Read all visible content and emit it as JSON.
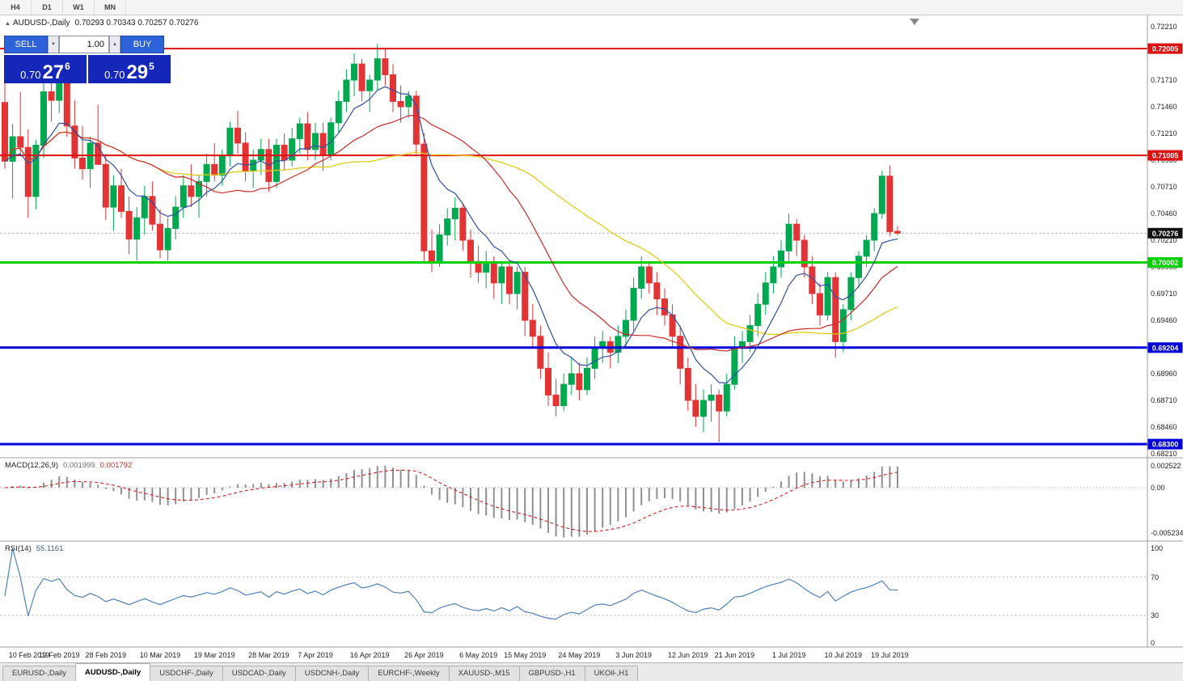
{
  "toolbar": {
    "timeframes": [
      "H4",
      "D1",
      "W1",
      "MN"
    ]
  },
  "chart_header": {
    "symbol_marker": "▲",
    "title": "AUDUSD-,Daily",
    "ohlc": "0.70293 0.70343 0.70257 0.70276"
  },
  "trade_panel": {
    "sell_label": "SELL",
    "buy_label": "BUY",
    "volume": "1.00",
    "spin_down": "▼",
    "spin_up": "▲",
    "sell_price": {
      "prefix": "0.70",
      "big": "27",
      "sup": "6"
    },
    "buy_price": {
      "prefix": "0.70",
      "big": "29",
      "sup": "5"
    }
  },
  "indicators": {
    "macd_label": "MACD(12,26,9)",
    "macd_value": "0.001999",
    "macd_signal": "0.001792",
    "rsi_label": "RSI(14)",
    "rsi_value": "55.1161"
  },
  "axes": {
    "price_ticks": [
      "0.72210",
      "0.71710",
      "0.71460",
      "0.71210",
      "0.70960",
      "0.70710",
      "0.70460",
      "0.70210",
      "0.69960",
      "0.69710",
      "0.69460",
      "0.68960",
      "0.68710",
      "0.68460",
      "0.68210"
    ],
    "macd_ticks": [
      "0.002522",
      "0.00",
      "-0.005234"
    ],
    "rsi_ticks": [
      "100",
      "70",
      "30",
      "0"
    ],
    "date_labels": [
      "10 Feb 2019",
      "19 Feb 2019",
      "28 Feb 2019",
      "10 Mar 2019",
      "19 Mar 2019",
      "28 Mar 2019",
      "7 Apr 2019",
      "16 Apr 2019",
      "26 Apr 2019",
      "6 May 2019",
      "15 May 2019",
      "24 May 2019",
      "3 Jun 2019",
      "12 Jun 2019",
      "21 Jun 2019",
      "1 Jul 2019",
      "10 Jul 2019",
      "19 Jul 2019"
    ],
    "date_label_indices": [
      0,
      7,
      13,
      20,
      27,
      34,
      40,
      47,
      54,
      61,
      67,
      74,
      81,
      88,
      94,
      101,
      108,
      114
    ]
  },
  "chart_data": {
    "type": "candlestick",
    "symbol": "AUDUSD",
    "timeframe": "Daily",
    "ylim": [
      0.6821,
      0.7221
    ],
    "current_price": {
      "value": 0.70276,
      "label": "0.70276"
    },
    "levels": [
      {
        "price": 0.72005,
        "label": "0.72005",
        "color": "#dd1111",
        "width": 2
      },
      {
        "price": 0.71005,
        "label": "0.71005",
        "color": "#dd1111",
        "width": 2
      },
      {
        "price": 0.70002,
        "label": "0.70002",
        "color": "#00cf00",
        "width": 3
      },
      {
        "price": 0.69204,
        "label": "0.69204",
        "color": "#0000dd",
        "width": 3
      },
      {
        "price": 0.683,
        "label": "0.68300",
        "color": "#0000dd",
        "width": 3
      }
    ],
    "colors": {
      "up": "#00a84f",
      "down": "#e23434",
      "ma_fast": "#2f4fa0",
      "ma_mid": "#cc2a2a",
      "ma_slow": "#e3cc18",
      "macd_hist": "#909090",
      "macd_signal": "#d02020",
      "rsi_line": "#4f81bd"
    },
    "ma_periods": {
      "fast": 8,
      "mid": 20,
      "slow": 40
    },
    "macd_params": {
      "fast": 12,
      "slow": 26,
      "signal": 9
    },
    "rsi_period": 14,
    "rsi_levels": [
      70,
      30
    ],
    "macd_ylim": [
      -0.005234,
      0.002522
    ],
    "rsi_ylim": [
      0,
      100
    ],
    "candles": [
      [
        0.715,
        0.7172,
        0.7088,
        0.7095
      ],
      [
        0.7095,
        0.713,
        0.706,
        0.7118
      ],
      [
        0.7118,
        0.716,
        0.71,
        0.7108
      ],
      [
        0.7108,
        0.7125,
        0.7042,
        0.7062
      ],
      [
        0.7062,
        0.7115,
        0.705,
        0.711
      ],
      [
        0.711,
        0.7168,
        0.7098,
        0.716
      ],
      [
        0.716,
        0.7178,
        0.7132,
        0.7152
      ],
      [
        0.7152,
        0.7182,
        0.714,
        0.7168
      ],
      [
        0.7168,
        0.7175,
        0.7118,
        0.7128
      ],
      [
        0.7128,
        0.7152,
        0.7088,
        0.7098
      ],
      [
        0.7098,
        0.7128,
        0.7078,
        0.7088
      ],
      [
        0.7088,
        0.7118,
        0.707,
        0.7112
      ],
      [
        0.7112,
        0.7148,
        0.7095,
        0.7092
      ],
      [
        0.7092,
        0.7102,
        0.704,
        0.7052
      ],
      [
        0.7052,
        0.7082,
        0.703,
        0.7072
      ],
      [
        0.7072,
        0.7088,
        0.7042,
        0.7048
      ],
      [
        0.7048,
        0.7062,
        0.7008,
        0.7022
      ],
      [
        0.7022,
        0.7052,
        0.7002,
        0.7042
      ],
      [
        0.7042,
        0.7072,
        0.7026,
        0.7062
      ],
      [
        0.7062,
        0.7076,
        0.703,
        0.7036
      ],
      [
        0.7036,
        0.705,
        0.7004,
        0.7012
      ],
      [
        0.7012,
        0.7042,
        0.7002,
        0.7032
      ],
      [
        0.7032,
        0.7062,
        0.7022,
        0.7052
      ],
      [
        0.7052,
        0.7082,
        0.7042,
        0.7072
      ],
      [
        0.7072,
        0.7092,
        0.7052,
        0.7062
      ],
      [
        0.7062,
        0.7082,
        0.7042,
        0.7076
      ],
      [
        0.7076,
        0.7102,
        0.7062,
        0.7092
      ],
      [
        0.7092,
        0.7112,
        0.7076,
        0.7082
      ],
      [
        0.7082,
        0.7106,
        0.7072,
        0.71
      ],
      [
        0.71,
        0.7132,
        0.709,
        0.7126
      ],
      [
        0.7126,
        0.7142,
        0.7102,
        0.7112
      ],
      [
        0.7112,
        0.7122,
        0.7076,
        0.7086
      ],
      [
        0.7086,
        0.7106,
        0.707,
        0.7096
      ],
      [
        0.7096,
        0.7116,
        0.7082,
        0.7106
      ],
      [
        0.7106,
        0.7116,
        0.7066,
        0.7076
      ],
      [
        0.7076,
        0.7116,
        0.707,
        0.711
      ],
      [
        0.711,
        0.7121,
        0.7086,
        0.7096
      ],
      [
        0.7096,
        0.7126,
        0.709,
        0.7116
      ],
      [
        0.7116,
        0.7136,
        0.7102,
        0.713
      ],
      [
        0.713,
        0.7141,
        0.7096,
        0.7106
      ],
      [
        0.7106,
        0.7131,
        0.7096,
        0.7121
      ],
      [
        0.7121,
        0.7131,
        0.7086,
        0.7101
      ],
      [
        0.7101,
        0.7136,
        0.7096,
        0.7131
      ],
      [
        0.7131,
        0.7161,
        0.7121,
        0.7151
      ],
      [
        0.7151,
        0.7181,
        0.7141,
        0.7171
      ],
      [
        0.7171,
        0.7196,
        0.7156,
        0.7186
      ],
      [
        0.7186,
        0.7191,
        0.7151,
        0.7161
      ],
      [
        0.7161,
        0.7176,
        0.7141,
        0.7171
      ],
      [
        0.7171,
        0.7205,
        0.7161,
        0.7191
      ],
      [
        0.7191,
        0.7201,
        0.7166,
        0.7176
      ],
      [
        0.7176,
        0.7186,
        0.7141,
        0.7151
      ],
      [
        0.7151,
        0.7166,
        0.7131,
        0.7146
      ],
      [
        0.7146,
        0.7161,
        0.7136,
        0.7156
      ],
      [
        0.7156,
        0.7161,
        0.7101,
        0.7111
      ],
      [
        0.7111,
        0.7121,
        0.7001,
        0.7011
      ],
      [
        0.7011,
        0.7031,
        0.6991,
        0.7001
      ],
      [
        0.7001,
        0.7036,
        0.6996,
        0.7026
      ],
      [
        0.7026,
        0.7051,
        0.7016,
        0.7041
      ],
      [
        0.7041,
        0.7061,
        0.7021,
        0.7051
      ],
      [
        0.7051,
        0.7056,
        0.7011,
        0.7021
      ],
      [
        0.7021,
        0.7031,
        0.6986,
        0.7001
      ],
      [
        0.7001,
        0.7016,
        0.6981,
        0.6991
      ],
      [
        0.6991,
        0.7011,
        0.6976,
        0.7001
      ],
      [
        0.7001,
        0.7006,
        0.6966,
        0.6981
      ],
      [
        0.6981,
        0.7001,
        0.6961,
        0.6996
      ],
      [
        0.6996,
        0.7001,
        0.6961,
        0.6971
      ],
      [
        0.6971,
        0.6996,
        0.6956,
        0.6991
      ],
      [
        0.6991,
        0.6996,
        0.6931,
        0.6946
      ],
      [
        0.6946,
        0.6961,
        0.6921,
        0.6931
      ],
      [
        0.6931,
        0.6941,
        0.6891,
        0.6901
      ],
      [
        0.6901,
        0.6916,
        0.6866,
        0.6876
      ],
      [
        0.6876,
        0.6891,
        0.6856,
        0.6866
      ],
      [
        0.6866,
        0.6896,
        0.6861,
        0.6886
      ],
      [
        0.6886,
        0.6911,
        0.6876,
        0.6896
      ],
      [
        0.6896,
        0.6906,
        0.6871,
        0.6881
      ],
      [
        0.6881,
        0.6911,
        0.6876,
        0.6901
      ],
      [
        0.6901,
        0.6931,
        0.6891,
        0.6921
      ],
      [
        0.6921,
        0.6936,
        0.6906,
        0.6926
      ],
      [
        0.6926,
        0.6931,
        0.6901,
        0.6916
      ],
      [
        0.6916,
        0.6941,
        0.6906,
        0.6931
      ],
      [
        0.6931,
        0.6956,
        0.6921,
        0.6946
      ],
      [
        0.6946,
        0.6986,
        0.6936,
        0.6976
      ],
      [
        0.6976,
        0.7006,
        0.6966,
        0.6996
      ],
      [
        0.6996,
        0.7001,
        0.6971,
        0.6981
      ],
      [
        0.6981,
        0.6991,
        0.6951,
        0.6966
      ],
      [
        0.6966,
        0.6976,
        0.6941,
        0.6951
      ],
      [
        0.6951,
        0.6961,
        0.6921,
        0.6931
      ],
      [
        0.6931,
        0.6941,
        0.6886,
        0.6901
      ],
      [
        0.6901,
        0.6911,
        0.6861,
        0.6871
      ],
      [
        0.6871,
        0.6886,
        0.6846,
        0.6856
      ],
      [
        0.6856,
        0.6881,
        0.6841,
        0.6871
      ],
      [
        0.6871,
        0.6886,
        0.6851,
        0.6876
      ],
      [
        0.6876,
        0.6881,
        0.6832,
        0.6861
      ],
      [
        0.6861,
        0.6896,
        0.6856,
        0.6886
      ],
      [
        0.6886,
        0.6931,
        0.6881,
        0.6921
      ],
      [
        0.6921,
        0.6936,
        0.6906,
        0.6926
      ],
      [
        0.6926,
        0.6951,
        0.6916,
        0.6941
      ],
      [
        0.6941,
        0.6971,
        0.6931,
        0.6961
      ],
      [
        0.6961,
        0.6991,
        0.6951,
        0.6981
      ],
      [
        0.6981,
        0.7006,
        0.6971,
        0.6996
      ],
      [
        0.6996,
        0.7021,
        0.6986,
        0.7011
      ],
      [
        0.7011,
        0.7046,
        0.7001,
        0.7036
      ],
      [
        0.7036,
        0.7041,
        0.7006,
        0.7021
      ],
      [
        0.7021,
        0.7026,
        0.6986,
        0.6996
      ],
      [
        0.6996,
        0.7006,
        0.6961,
        0.6971
      ],
      [
        0.6971,
        0.6981,
        0.6941,
        0.6951
      ],
      [
        0.6951,
        0.6991,
        0.6946,
        0.6986
      ],
      [
        0.6986,
        0.6991,
        0.6911,
        0.6926
      ],
      [
        0.6926,
        0.6961,
        0.6916,
        0.6956
      ],
      [
        0.6956,
        0.6991,
        0.6946,
        0.6986
      ],
      [
        0.6986,
        0.7011,
        0.6976,
        0.7006
      ],
      [
        0.7006,
        0.7026,
        0.6996,
        0.7021
      ],
      [
        0.7021,
        0.7051,
        0.7011,
        0.7046
      ],
      [
        0.7046,
        0.7086,
        0.7041,
        0.7081
      ],
      [
        0.7081,
        0.7091,
        0.7025,
        0.7029
      ],
      [
        0.70293,
        0.70343,
        0.70257,
        0.70276
      ]
    ]
  },
  "tabs": [
    {
      "label": "EURUSD-,Daily",
      "active": false
    },
    {
      "label": "AUDUSD-,Daily",
      "active": true
    },
    {
      "label": "USDCHF-,Daily",
      "active": false
    },
    {
      "label": "USDCAD-,Daily",
      "active": false
    },
    {
      "label": "USDCNH-,Daily",
      "active": false
    },
    {
      "label": "EURCHF-,Weekly",
      "active": false
    },
    {
      "label": "XAUUSD-,M15",
      "active": false
    },
    {
      "label": "GBPUSD-,H1",
      "active": false
    },
    {
      "label": "UKOil-,H1",
      "active": false
    }
  ]
}
